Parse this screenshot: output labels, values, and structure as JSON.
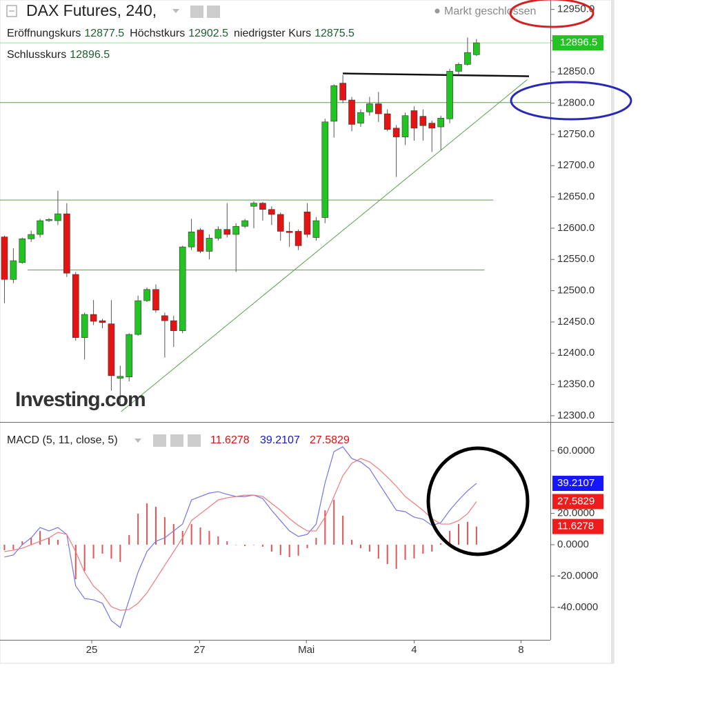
{
  "chart_data": [
    {
      "type": "candlestick",
      "title": "DAX Futures, 240,",
      "status": "Markt geschlossen",
      "ohlc_labels": {
        "open": "Eröffnungskurs",
        "high": "Höchstkurs",
        "low": "niedrigster Kurs",
        "close": "Schlusskurs"
      },
      "watermark": "Investing.com",
      "up_color": "#22c322",
      "down_color": "#e31414",
      "last_line_color": "#9be39b",
      "x": [
        0,
        1,
        2,
        3,
        4,
        5,
        6,
        7,
        8,
        9,
        10,
        11,
        12,
        13,
        14,
        15,
        16,
        17,
        18,
        19,
        20,
        21,
        22,
        23,
        24,
        25,
        26,
        27,
        28,
        29,
        30,
        31,
        32,
        33,
        34,
        35,
        36,
        37,
        38,
        39,
        40,
        41,
        42,
        43,
        44,
        45,
        46,
        47,
        48,
        49,
        50,
        51,
        52,
        53
      ],
      "open": [
        12586,
        12518,
        12545,
        12583,
        12590,
        12612,
        12612,
        12623,
        12526,
        12425,
        12462,
        12452,
        12447,
        12360,
        12362,
        12430,
        12484,
        12502,
        12460,
        12452,
        12436,
        12570,
        12597,
        12563,
        12584,
        12598,
        12590,
        12603,
        12635,
        12640,
        12630,
        12622,
        12595,
        12595,
        12626,
        12585,
        12617,
        12771,
        12832,
        12805,
        12768,
        12786,
        12799,
        12783,
        12760,
        12746,
        12788,
        12779,
        12768,
        12762,
        12775,
        12851,
        12862,
        12877.5
      ],
      "high": [
        12588,
        12568,
        12585,
        12596,
        12615,
        12616,
        12660,
        12640,
        12530,
        12465,
        12485,
        12455,
        12485,
        12380,
        12432,
        12492,
        12505,
        12510,
        12465,
        12460,
        12572,
        12615,
        12600,
        12590,
        12603,
        12640,
        12608,
        12615,
        12643,
        12642,
        12635,
        12625,
        12610,
        12598,
        12640,
        12618,
        12775,
        12830,
        12845,
        12810,
        12790,
        12810,
        12818,
        12790,
        12765,
        12785,
        12795,
        12790,
        12772,
        12780,
        12855,
        12865,
        12905,
        12902.5
      ],
      "low": [
        12480,
        12512,
        12543,
        12578,
        12585,
        12610,
        12605,
        12522,
        12420,
        12390,
        12445,
        12440,
        12340,
        12320,
        12355,
        12428,
        12482,
        12465,
        12393,
        12410,
        12432,
        12565,
        12560,
        12550,
        12580,
        12585,
        12530,
        12600,
        12600,
        12612,
        12605,
        12580,
        12570,
        12565,
        12585,
        12580,
        12608,
        12745,
        12800,
        12755,
        12762,
        12780,
        12770,
        12755,
        12682,
        12733,
        12740,
        12740,
        12722,
        12725,
        12768,
        12845,
        12860,
        12875.5
      ],
      "close": [
        12518,
        12548,
        12583,
        12590,
        12612,
        12614,
        12623,
        12528,
        12425,
        12462,
        12451,
        12449,
        12364,
        12363,
        12430,
        12484,
        12502,
        12469,
        12452,
        12436,
        12570,
        12594,
        12563,
        12584,
        12598,
        12590,
        12603,
        12612,
        12640,
        12630,
        12622,
        12595,
        12593,
        12572,
        12590,
        12612,
        12770,
        12828,
        12805,
        12766,
        12785,
        12799,
        12783,
        12758,
        12746,
        12780,
        12760,
        12764,
        12760,
        12776,
        12851,
        12862,
        12881,
        12896.5
      ],
      "xlim": [
        -0.5,
        61.3
      ],
      "xticks": [
        {
          "value": 9.8,
          "label": "25"
        },
        {
          "value": 21.9,
          "label": "27"
        },
        {
          "value": 33.9,
          "label": "Mai"
        },
        {
          "value": 46,
          "label": "4"
        },
        {
          "value": 58,
          "label": "8"
        }
      ],
      "ylim": [
        12290,
        12965
      ],
      "yticks": [
        {
          "value": 12300,
          "label": "12300.0"
        },
        {
          "value": 12350,
          "label": "12350.0"
        },
        {
          "value": 12400,
          "label": "12400.0"
        },
        {
          "value": 12450,
          "label": "12450.0"
        },
        {
          "value": 12500,
          "label": "12500.0"
        },
        {
          "value": 12550,
          "label": "12550.0"
        },
        {
          "value": 12600,
          "label": "12600.0"
        },
        {
          "value": 12650,
          "label": "12650.0"
        },
        {
          "value": 12700,
          "label": "12700.0"
        },
        {
          "value": 12750,
          "label": "12750.0"
        },
        {
          "value": 12800,
          "label": "12800.0"
        },
        {
          "value": 12850,
          "label": "12850.0"
        },
        {
          "value": 12900,
          "label": "12900.0"
        },
        {
          "value": 12950,
          "label": "12950.0"
        }
      ],
      "drawings": [
        {
          "x": [
            -0.5,
            61.3
          ],
          "y": [
            12801,
            12801
          ],
          "color": "#5a9e4a"
        },
        {
          "x": [
            -0.5,
            54.9
          ],
          "y": [
            12645,
            12645
          ],
          "color": "#5a9e4a"
        },
        {
          "x": [
            2.6,
            53.9
          ],
          "y": [
            12533,
            12533
          ],
          "color": "#5a9e4a"
        },
        {
          "x": [
            13.1,
            58.7
          ],
          "y": [
            12306.5,
            12837.6
          ],
          "color": "#5a9e4a"
        },
        {
          "x": [
            38,
            58.9
          ],
          "y": [
            12847.5,
            12843
          ],
          "color": "#111111"
        }
      ]
    },
    {
      "type": "macd",
      "title": "MACD (5, 11, close, 5)",
      "ylim": [
        -60.8,
        78
      ],
      "yticks": [
        {
          "value": 60,
          "label": "60.0000"
        },
        {
          "value": 20,
          "label": "20.0000"
        },
        {
          "value": 0,
          "label": "0.0000"
        },
        {
          "value": -20,
          "label": "-20.0000"
        },
        {
          "value": -40,
          "label": "-40.0000"
        }
      ],
      "series": [
        {
          "kind": "histogram",
          "color": "#e05555",
          "label_color": "#ee1c1c",
          "values": [
            -3.5,
            -3.1,
            2.2,
            4.4,
            8.8,
            4.4,
            3.1,
            0,
            -22.0,
            -16.8,
            -8.8,
            -5.7,
            -8.9,
            -11.0,
            6.2,
            19.8,
            26.4,
            24.2,
            17.6,
            13.2,
            8.8,
            13.2,
            11.0,
            8.8,
            5.3,
            2.2,
            0,
            -0.9,
            0,
            -1.3,
            -4.4,
            -6.6,
            -7.9,
            -7.0,
            -2.2,
            4.4,
            22.0,
            28.7,
            18.5,
            3.1,
            -2.2,
            -4.4,
            -8.9,
            -12.4,
            -15.4,
            -9.7,
            -8.8,
            -5.7,
            -4.4,
            0.9,
            8.8,
            13.2,
            14.6,
            11.6278
          ]
        },
        {
          "kind": "line",
          "color": "#7474e6",
          "label_color": "#1515ff",
          "values": [
            -7.9,
            -6.6,
            0,
            4.4,
            11.0,
            8.8,
            11.0,
            6.6,
            -26.4,
            -34.4,
            -35.2,
            -37.4,
            -48.5,
            -52.9,
            -35.2,
            -17.6,
            -4.4,
            2.2,
            4.4,
            8.8,
            13.2,
            28.6,
            30.8,
            33.0,
            33.9,
            32.2,
            30.8,
            30.8,
            31.7,
            29.5,
            22.0,
            15.4,
            8.8,
            5.3,
            6.6,
            13.2,
            39.6,
            59.5,
            62.6,
            55.1,
            52.9,
            48.5,
            39.6,
            30.8,
            22.0,
            21.1,
            17.6,
            16.3,
            12.3,
            14.1,
            22.0,
            28.6,
            34.4,
            39.2107
          ]
        },
        {
          "kind": "line",
          "color": "#ef7a7a",
          "label_color": "#ee1c1c",
          "values": [
            -4.4,
            -3.5,
            -2.2,
            0,
            2.2,
            4.4,
            7.9,
            6.6,
            -4.4,
            -17.6,
            -26.4,
            -31.7,
            -39.6,
            -41.9,
            -41.4,
            -37.4,
            -30.8,
            -22.0,
            -13.2,
            -4.4,
            4.4,
            15.4,
            19.8,
            24.2,
            28.6,
            30.0,
            30.8,
            31.7,
            31.7,
            30.8,
            26.4,
            22.0,
            16.7,
            12.3,
            8.8,
            8.8,
            17.6,
            30.8,
            44.1,
            52.0,
            55.1,
            52.9,
            48.5,
            43.2,
            37.4,
            30.8,
            26.4,
            22.0,
            16.7,
            13.2,
            13.2,
            15.4,
            19.8,
            27.5829
          ]
        }
      ]
    }
  ]
}
